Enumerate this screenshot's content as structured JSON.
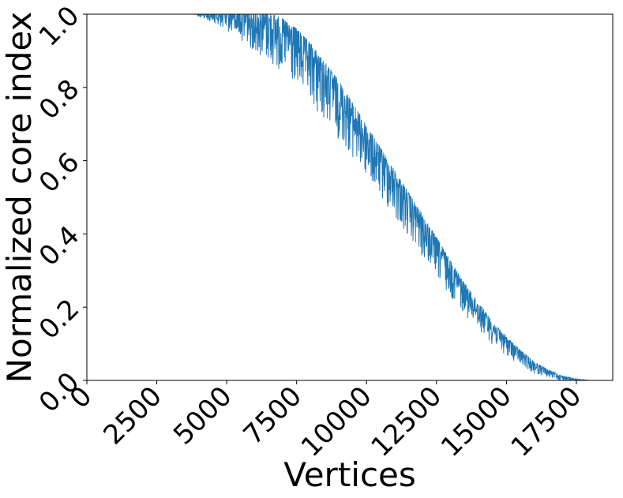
{
  "chart_data": {
    "type": "line",
    "title": "",
    "xlabel": "Vertices",
    "ylabel": "Normalized core index",
    "xlim": [
      0,
      18800
    ],
    "ylim": [
      0.0,
      1.0
    ],
    "xticks": [
      0,
      2500,
      5000,
      7500,
      10000,
      12500,
      15000,
      17500
    ],
    "xtick_labels": [
      "0",
      "2500",
      "5000",
      "7500",
      "10000",
      "12500",
      "15000",
      "17500"
    ],
    "yticks": [
      0.0,
      0.2,
      0.4,
      0.6,
      0.8,
      1.0
    ],
    "ytick_labels": [
      "0.0",
      "0.2",
      "0.4",
      "0.6",
      "0.8",
      "1.0"
    ],
    "grid": false,
    "legend": "none",
    "series": [
      {
        "color": "#1f77b4",
        "trend": {
          "x": [
            0,
            4000,
            5500,
            6000,
            6500,
            7000,
            7500,
            8000,
            8500,
            9000,
            9500,
            10000,
            10500,
            11000,
            11500,
            12000,
            12500,
            13000,
            13500,
            14000,
            14500,
            15000,
            15500,
            16000,
            16500,
            17000,
            17500,
            18000,
            18800
          ],
          "y": [
            1.0,
            1.0,
            1.0,
            0.99,
            0.98,
            0.96,
            0.93,
            0.89,
            0.84,
            0.79,
            0.73,
            0.67,
            0.61,
            0.55,
            0.49,
            0.43,
            0.37,
            0.31,
            0.25,
            0.2,
            0.15,
            0.11,
            0.075,
            0.045,
            0.025,
            0.01,
            0.003,
            0.0,
            0.0
          ]
        },
        "noise_amplitude": {
          "x": [
            0,
            3800,
            4500,
            5500,
            6500,
            7500,
            8500,
            9500,
            10500,
            11500,
            12500,
            13500,
            14500,
            15500,
            16500,
            17500,
            18000,
            18800
          ],
          "y": [
            0.0,
            0.0,
            0.02,
            0.06,
            0.1,
            0.12,
            0.12,
            0.11,
            0.1,
            0.09,
            0.08,
            0.06,
            0.045,
            0.03,
            0.015,
            0.005,
            0.0,
            0.0
          ]
        }
      }
    ]
  }
}
